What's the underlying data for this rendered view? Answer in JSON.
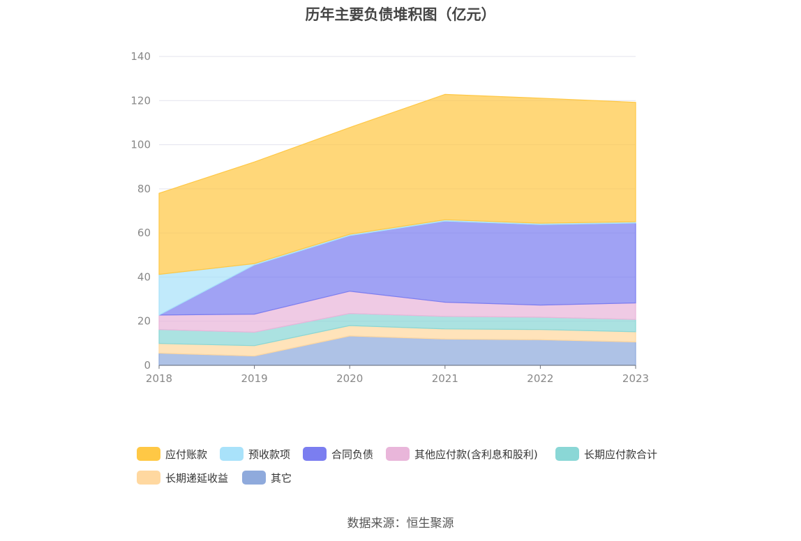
{
  "chart_data": {
    "type": "area",
    "stacked": true,
    "title": "历年主要负债堆积图（亿元）",
    "x": [
      "2018",
      "2019",
      "2020",
      "2021",
      "2022",
      "2023"
    ],
    "ylim": [
      0,
      140
    ],
    "yticks": [
      0,
      20,
      40,
      60,
      80,
      100,
      120,
      140
    ],
    "grid": true,
    "legend_position": "bottom",
    "series": [
      {
        "name": "其它",
        "color": "#8faadc",
        "values": [
          5.5,
          4.2,
          13.3,
          11.9,
          11.6,
          10.6
        ]
      },
      {
        "name": "长期递延收益",
        "color": "#ffd8a0",
        "values": [
          4.4,
          4.7,
          4.7,
          4.6,
          4.6,
          4.6
        ]
      },
      {
        "name": "长期应付款合计",
        "color": "#8ad7d6",
        "values": [
          6.3,
          6.1,
          5.5,
          5.7,
          5.6,
          5.6
        ]
      },
      {
        "name": "其他应付款(含利息和股利)",
        "color": "#e9b6da",
        "values": [
          6.6,
          8.2,
          10.1,
          6.4,
          5.5,
          7.5
        ]
      },
      {
        "name": "合同负债",
        "color": "#7b7ef0",
        "values": [
          0,
          22.3,
          25.2,
          36.8,
          36.5,
          36.2
        ]
      },
      {
        "name": "预收款项",
        "color": "#a9e2fa",
        "values": [
          18.4,
          0.6,
          0.6,
          0.6,
          0.6,
          0.6
        ]
      },
      {
        "name": "应付账款",
        "color": "#ffc845",
        "values": [
          36.8,
          46.1,
          48.4,
          56.8,
          56.7,
          54.1
        ]
      }
    ]
  },
  "source_text": "数据来源：恒生聚源"
}
